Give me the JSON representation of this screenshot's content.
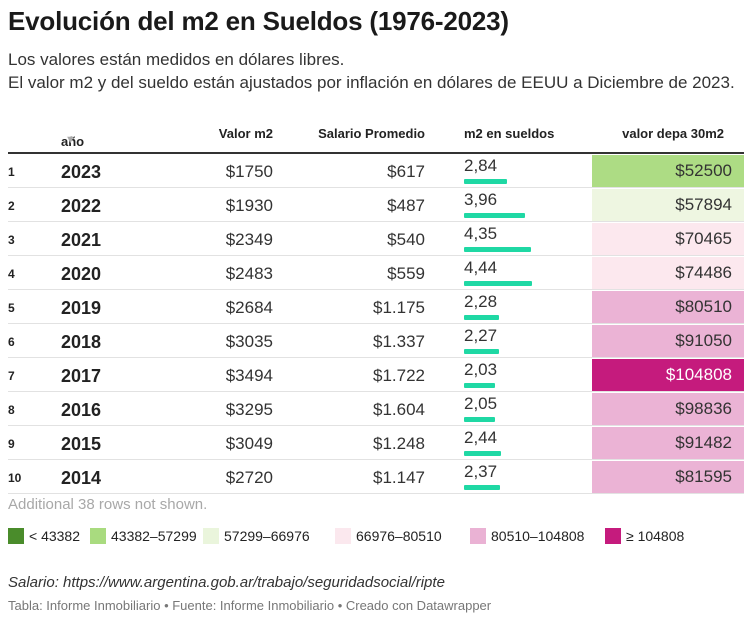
{
  "title": "Evolución del m2 en Sueldos (1976-2023)",
  "subtitle": [
    "Los valores están medidos en dólares libres.",
    "El valor m2 y del sueldo están ajustados por inflación en dólares de EEUU a Diciembre de 2023."
  ],
  "columns": {
    "year": "año",
    "valor_m2": "Valor m2",
    "salario": "Salario Promedio",
    "ratio": "m2 en sueldos",
    "valor_depa": "valor depa 30m2"
  },
  "more_rows": "Additional 38 rows not shown.",
  "legend": [
    {
      "label": "< 43382",
      "color": "#4a8c2b"
    },
    {
      "label": "43382–57299",
      "color": "#a9db7f"
    },
    {
      "label": "57299–66976",
      "color": "#eaf5dc"
    },
    {
      "label": "66976–80510",
      "color": "#fbe8ee"
    },
    {
      "label": "80510–104808",
      "color": "#eab2d4"
    },
    {
      "label": "≥ 104808",
      "color": "#c51b7d"
    }
  ],
  "source": "Salario: https://www.argentina.gob.ar/trabajo/seguridadsocial/ripte",
  "footer": "Tabla: Informe Inmobiliario • Fuente: Informe Inmobiliario • Creado con Datawrapper",
  "chart_data": {
    "type": "table",
    "ratio_bar_max": 4.44,
    "rows": [
      {
        "rank": "1",
        "year": "2023",
        "valor_m2": "$1750",
        "salario": "$617",
        "ratio": "2,84",
        "ratio_value": 2.84,
        "valor_depa": "$52500",
        "valor_depa_value": 52500,
        "cell_color": "#addc84",
        "text_color": "#333333"
      },
      {
        "rank": "2",
        "year": "2022",
        "valor_m2": "$1930",
        "salario": "$487",
        "ratio": "3,96",
        "ratio_value": 3.96,
        "valor_depa": "$57894",
        "valor_depa_value": 57894,
        "cell_color": "#eef6e1",
        "text_color": "#333333"
      },
      {
        "rank": "3",
        "year": "2021",
        "valor_m2": "$2349",
        "salario": "$540",
        "ratio": "4,35",
        "ratio_value": 4.35,
        "valor_depa": "$70465",
        "valor_depa_value": 70465,
        "cell_color": "#fce8ee",
        "text_color": "#333333"
      },
      {
        "rank": "4",
        "year": "2020",
        "valor_m2": "$2483",
        "salario": "$559",
        "ratio": "4,44",
        "ratio_value": 4.44,
        "valor_depa": "$74486",
        "valor_depa_value": 74486,
        "cell_color": "#fce8ee",
        "text_color": "#333333"
      },
      {
        "rank": "5",
        "year": "2019",
        "valor_m2": "$2684",
        "salario": "$1.175",
        "ratio": "2,28",
        "ratio_value": 2.28,
        "valor_depa": "$80510",
        "valor_depa_value": 80510,
        "cell_color": "#ebb3d5",
        "text_color": "#333333"
      },
      {
        "rank": "6",
        "year": "2018",
        "valor_m2": "$3035",
        "salario": "$1.337",
        "ratio": "2,27",
        "ratio_value": 2.27,
        "valor_depa": "$91050",
        "valor_depa_value": 91050,
        "cell_color": "#ebb3d5",
        "text_color": "#333333"
      },
      {
        "rank": "7",
        "year": "2017",
        "valor_m2": "$3494",
        "salario": "$1.722",
        "ratio": "2,03",
        "ratio_value": 2.03,
        "valor_depa": "$104808",
        "valor_depa_value": 104808,
        "cell_color": "#c51b7d",
        "text_color": "#ffffff"
      },
      {
        "rank": "8",
        "year": "2016",
        "valor_m2": "$3295",
        "salario": "$1.604",
        "ratio": "2,05",
        "ratio_value": 2.05,
        "valor_depa": "$98836",
        "valor_depa_value": 98836,
        "cell_color": "#ebb3d5",
        "text_color": "#333333"
      },
      {
        "rank": "9",
        "year": "2015",
        "valor_m2": "$3049",
        "salario": "$1.248",
        "ratio": "2,44",
        "ratio_value": 2.44,
        "valor_depa": "$91482",
        "valor_depa_value": 91482,
        "cell_color": "#ebb3d5",
        "text_color": "#333333"
      },
      {
        "rank": "10",
        "year": "2014",
        "valor_m2": "$2720",
        "salario": "$1.147",
        "ratio": "2,37",
        "ratio_value": 2.37,
        "valor_depa": "$81595",
        "valor_depa_value": 81595,
        "cell_color": "#ebb3d5",
        "text_color": "#333333"
      }
    ]
  }
}
